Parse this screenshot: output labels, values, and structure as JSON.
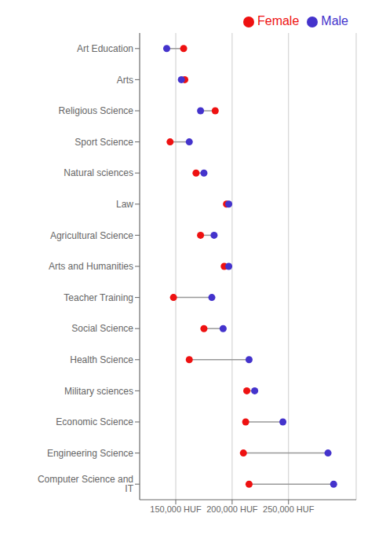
{
  "chart_data": {
    "type": "dumbbell",
    "categories": [
      "Computer Science and IT",
      "Engineering Science",
      "Economic Science",
      "Military sciences",
      "Health Science",
      "Social Science",
      "Teacher Training",
      "Arts and Humanities",
      "Agricultural Science",
      "Law",
      "Natural sciences",
      "Sport Science",
      "Religious Science",
      "Arts",
      "Art Education"
    ],
    "series": [
      {
        "name": "Female",
        "color": "#EE1111",
        "values": [
          215000,
          210000,
          212000,
          213000,
          162000,
          175000,
          148000,
          193000,
          172000,
          195000,
          168000,
          145000,
          185000,
          158000,
          157000
        ]
      },
      {
        "name": "Male",
        "color": "#4433CC",
        "values": [
          290000,
          285000,
          245000,
          220000,
          215000,
          192000,
          182000,
          197000,
          184000,
          197000,
          175000,
          162000,
          172000,
          155000,
          142000
        ]
      }
    ],
    "color": "#999999",
    "xlim": [
      118000,
      310000
    ],
    "xticks": [
      {
        "value": 150000,
        "label": "150,000 HUF"
      },
      {
        "value": 200000,
        "label": "200,000 HUF"
      },
      {
        "value": 250000,
        "label": "250,000 HUF"
      }
    ],
    "grid": true,
    "legend": "upper right"
  }
}
